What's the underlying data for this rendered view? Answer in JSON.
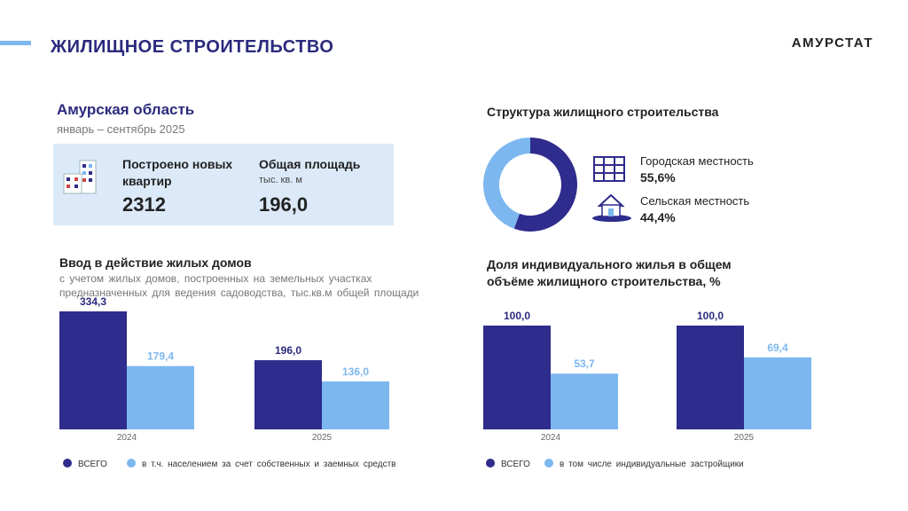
{
  "header": {
    "title": "ЖИЛИЩНОЕ СТРОИТЕЛЬСТВО",
    "brand": "АМУРСТАТ"
  },
  "summary": {
    "region": "Амурская область",
    "period": "январь – сентябрь 2025",
    "apartments": {
      "label": "Построено новых квартир",
      "value": 2312
    },
    "area": {
      "label": "Общая площадь",
      "unit": "тыс. кв. м",
      "value": "196,0"
    }
  },
  "chart_data": [
    {
      "type": "pie",
      "title": "Структура жилищного строительства",
      "categories": [
        "Городская местность",
        "Сельская местность"
      ],
      "values": [
        55.6,
        44.4
      ],
      "value_labels": [
        "55,6%",
        "44,4%"
      ],
      "colors": [
        "#2e2c8c",
        "#7db7ef"
      ]
    },
    {
      "type": "bar",
      "title": "Ввод в действие жилых домов",
      "subtitle": "с учетом жилых домов, построенных на земельных участках предназначенных для ведения садоводства, тыс.кв.м общей площади",
      "categories": [
        "2024",
        "2025"
      ],
      "series": [
        {
          "name": "ВСЕГО",
          "color": "#2e2c8c",
          "values": [
            334.3,
            196.0
          ],
          "value_labels": [
            "334,3",
            "196,0"
          ]
        },
        {
          "name": "в т.ч. населением за счет собственных и заемных средств",
          "color": "#7db7ef",
          "values": [
            179.4,
            136.0
          ],
          "value_labels": [
            "179,4",
            "136,0"
          ]
        }
      ]
    },
    {
      "type": "bar",
      "title": "Доля индивидуального жилья в общем объёме жилищного строительства, %",
      "categories": [
        "2024",
        "2025"
      ],
      "series": [
        {
          "name": "ВСЕГО",
          "color": "#2e2c8c",
          "values": [
            100.0,
            100.0
          ],
          "value_labels": [
            "100,0",
            "100,0"
          ]
        },
        {
          "name": "в том числе индивидуальные застройщики",
          "color": "#7db7ef",
          "values": [
            53.7,
            69.4
          ],
          "value_labels": [
            "53,7",
            "69,4"
          ]
        }
      ]
    }
  ]
}
